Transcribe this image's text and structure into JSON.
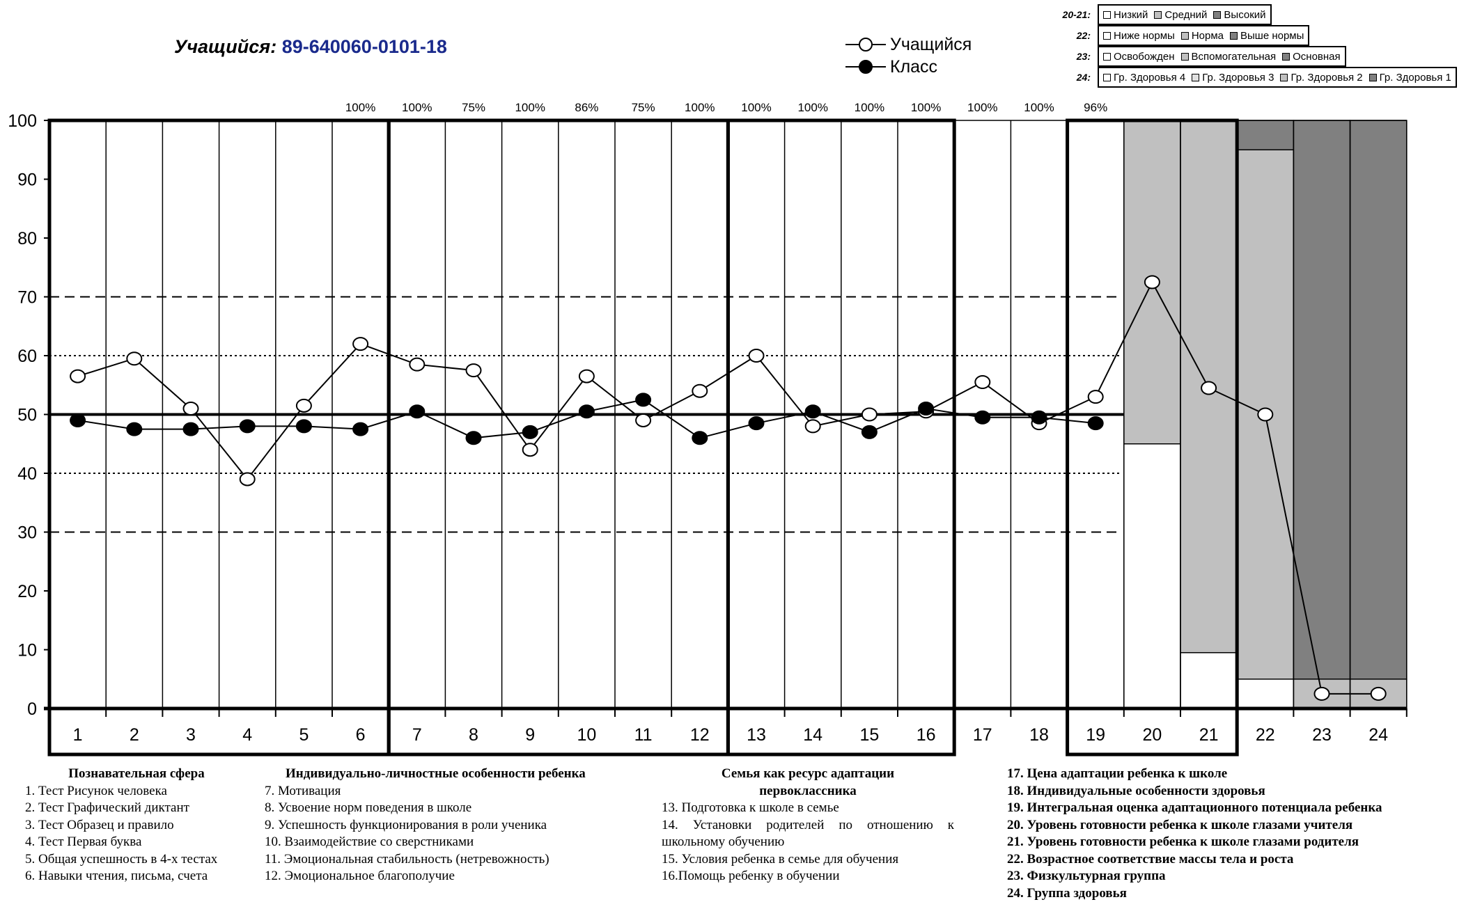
{
  "title": {
    "label": "Учащийся:",
    "id": "89-640060-0101-18"
  },
  "legend": {
    "student": "Учащийся",
    "class": "Класс"
  },
  "category_legend": [
    {
      "key": "20-21:",
      "items": [
        {
          "label": "Низкий",
          "color": "#ffffff"
        },
        {
          "label": "Средний",
          "color": "#c0c0c0"
        },
        {
          "label": "Высокий",
          "color": "#808080"
        }
      ]
    },
    {
      "key": "22:",
      "items": [
        {
          "label": "Ниже нормы",
          "color": "#ffffff"
        },
        {
          "label": "Норма",
          "color": "#c0c0c0"
        },
        {
          "label": "Выше нормы",
          "color": "#808080"
        }
      ]
    },
    {
      "key": "23:",
      "items": [
        {
          "label": "Освобожден",
          "color": "#ffffff"
        },
        {
          "label": "Вспомогательная",
          "color": "#c0c0c0"
        },
        {
          "label": "Основная",
          "color": "#808080"
        }
      ]
    },
    {
      "key": "24:",
      "items": [
        {
          "label": "Гр. Здоровья 4",
          "color": "#ffffff"
        },
        {
          "label": "Гр. Здоровья 3",
          "color": "#e0e0e0"
        },
        {
          "label": "Гр. Здоровья 2",
          "color": "#c0c0c0"
        },
        {
          "label": "Гр. Здоровья 1",
          "color": "#808080"
        }
      ]
    }
  ],
  "chart_data": {
    "type": "line",
    "categories": [
      "1",
      "2",
      "3",
      "4",
      "5",
      "6",
      "7",
      "8",
      "9",
      "10",
      "11",
      "12",
      "13",
      "14",
      "15",
      "16",
      "17",
      "18",
      "19",
      "20",
      "21",
      "22",
      "23",
      "24"
    ],
    "ylim": [
      0,
      100
    ],
    "yticks": [
      0,
      10,
      20,
      30,
      40,
      50,
      60,
      70,
      80,
      90,
      100
    ],
    "percent_labels": [
      "",
      "",
      "",
      "",
      "",
      "100%",
      "100%",
      "75%",
      "100%",
      "86%",
      "75%",
      "100%",
      "100%",
      "100%",
      "100%",
      "100%",
      "100%",
      "100%",
      "96%",
      "",
      "",
      "",
      "",
      ""
    ],
    "reference_lines": [
      {
        "y": 50,
        "style": "solid-thick"
      },
      {
        "y": 70,
        "style": "dashed"
      },
      {
        "y": 30,
        "style": "dashed"
      },
      {
        "y": 60,
        "style": "dotted"
      },
      {
        "y": 40,
        "style": "dotted"
      }
    ],
    "series": [
      {
        "name": "Учащийся",
        "marker": "open-circle",
        "values": [
          56.5,
          59.5,
          51,
          39,
          51.5,
          62,
          58.5,
          57.5,
          44,
          56.5,
          49,
          54,
          60,
          48,
          50,
          50.5,
          55.5,
          48.5,
          53,
          72.5,
          54.5,
          50,
          2.5,
          2.5
        ]
      },
      {
        "name": "Класс",
        "marker": "filled-circle",
        "values": [
          49,
          47.5,
          47.5,
          48,
          48,
          47.5,
          50.5,
          46,
          47,
          50.5,
          52.5,
          46,
          48.5,
          50.5,
          47,
          51,
          49.5,
          49.5,
          48.5,
          null,
          null,
          null,
          null,
          null
        ]
      }
    ],
    "category_bands": [
      {
        "column": "20",
        "segments": [
          {
            "from": 0,
            "to": 45,
            "color": "#ffffff"
          },
          {
            "from": 45,
            "to": 100,
            "color": "#c0c0c0"
          }
        ]
      },
      {
        "column": "21",
        "segments": [
          {
            "from": 0,
            "to": 9.5,
            "color": "#ffffff"
          },
          {
            "from": 9.5,
            "to": 100,
            "color": "#c0c0c0"
          }
        ]
      },
      {
        "column": "22",
        "segments": [
          {
            "from": 0,
            "to": 5,
            "color": "#ffffff"
          },
          {
            "from": 5,
            "to": 95,
            "color": "#c0c0c0"
          },
          {
            "from": 95,
            "to": 100,
            "color": "#808080"
          }
        ]
      },
      {
        "column": "23",
        "segments": [
          {
            "from": 0,
            "to": 5,
            "color": "#c0c0c0"
          },
          {
            "from": 5,
            "to": 100,
            "color": "#808080"
          }
        ]
      },
      {
        "column": "24",
        "segments": [
          {
            "from": 0,
            "to": 5,
            "color": "#c0c0c0"
          },
          {
            "from": 5,
            "to": 100,
            "color": "#808080"
          }
        ]
      }
    ],
    "groups": [
      {
        "columns": [
          "1",
          "6"
        ]
      },
      {
        "columns": [
          "7",
          "12"
        ]
      },
      {
        "columns": [
          "13",
          "16"
        ]
      },
      {
        "columns": [
          "19",
          "21"
        ]
      }
    ]
  },
  "notes": {
    "col1": {
      "head": "Познавательная сфера",
      "items": [
        "1. Тест Рисунок человека",
        "2. Тест Графический диктант",
        "3. Тест Образец и правило",
        "4. Тест Первая буква",
        "5. Общая успешность в 4-х тестах",
        "6. Навыки чтения, письма, счета"
      ]
    },
    "col2": {
      "head": "Индивидуально-личностные особенности ребенка",
      "items": [
        "7. Мотивация",
        "8. Усвоение норм поведения в школе",
        "9. Успешность функционирования в роли ученика",
        "10. Взаимодействие со сверстниками",
        "11. Эмоциональная стабильность (нетревожность)",
        "12. Эмоциональное благополучие"
      ]
    },
    "col3": {
      "head": "Семья как ресурс адаптации первоклассника",
      "items": [
        "13. Подготовка к школе в семье",
        "14. Установки родителей по отношению к школьному обучению",
        "15. Условия ребенка в семье для обучения",
        "16.Помощь ребенку в обучении"
      ]
    },
    "col4": {
      "items": [
        "17. Цена адаптации ребенка к школе",
        "18. Индивидуальные особенности здоровья",
        "19. Интегральная оценка адаптационного потенциала ребенка",
        "20. Уровень готовности ребенка к школе глазами учителя",
        "21. Уровень готовности ребенка к школе глазами родителя",
        "22. Возрастное соответствие  массы тела и роста",
        "23. Физкультурная группа",
        "24. Группа здоровья"
      ]
    }
  }
}
